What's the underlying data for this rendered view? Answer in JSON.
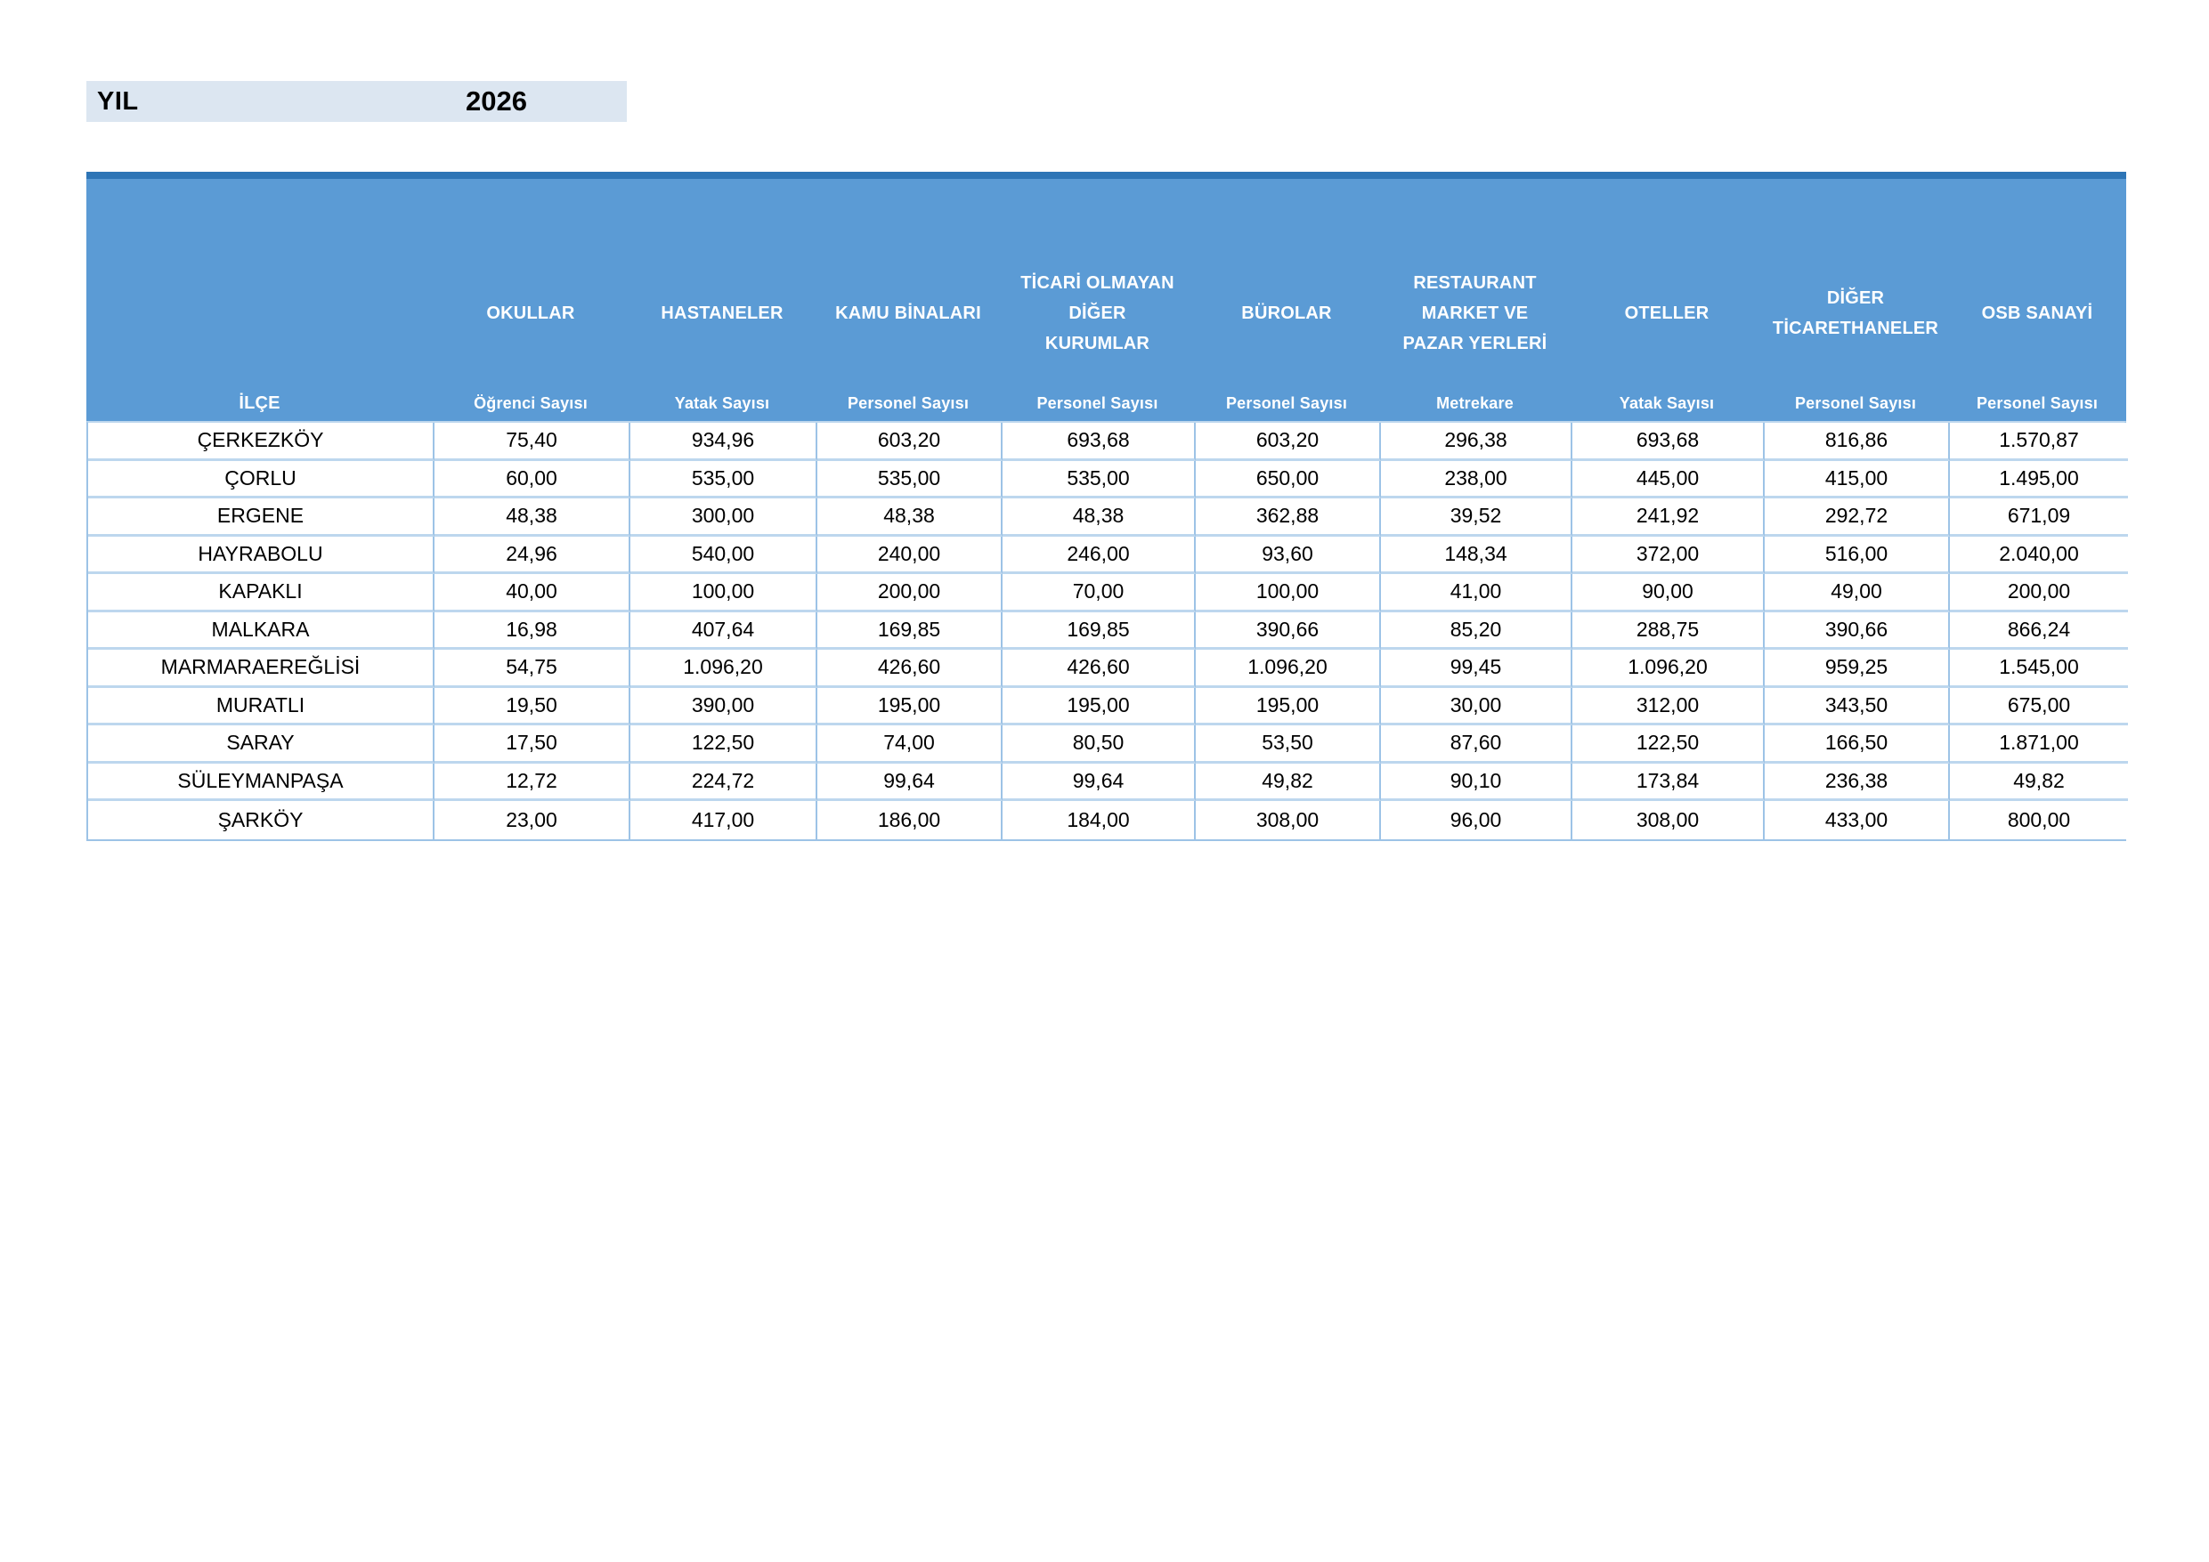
{
  "year_banner": {
    "label": "YIL",
    "value": "2026"
  },
  "colors": {
    "header_blue": "#5b9bd5",
    "header_top_strip": "#2e75b6",
    "grid_line": "#9dc3e6",
    "row_line": "#bdd7ee",
    "banner_bg": "#dce6f1",
    "header_text": "#ffffff",
    "data_text": "#000000"
  },
  "table": {
    "row_header": "İLÇE",
    "columns": [
      {
        "group": "OKULLAR",
        "group_lines": [
          "OKULLAR"
        ],
        "sub": "Öğrenci Sayısı"
      },
      {
        "group": "HASTANELER",
        "group_lines": [
          "HASTANELER"
        ],
        "sub": "Yatak Sayısı"
      },
      {
        "group": "KAMU BİNALARI",
        "group_lines": [
          "KAMU BİNALARI"
        ],
        "sub": "Personel Sayısı"
      },
      {
        "group": "TİCARİ OLMAYAN DİĞER KURUMLAR",
        "group_lines": [
          "TİCARİ OLMAYAN",
          "DİĞER",
          "KURUMLAR"
        ],
        "sub": "Personel Sayısı"
      },
      {
        "group": "BÜROLAR",
        "group_lines": [
          "BÜROLAR"
        ],
        "sub": "Personel Sayısı"
      },
      {
        "group": "RESTAURANT MARKET VE PAZAR YERLERİ",
        "group_lines": [
          "RESTAURANT",
          "MARKET VE",
          "PAZAR YERLERİ"
        ],
        "sub": "Metrekare"
      },
      {
        "group": "OTELLER",
        "group_lines": [
          "OTELLER"
        ],
        "sub": "Yatak Sayısı"
      },
      {
        "group": "DİĞER TİCARETHANELER",
        "group_lines": [
          "DİĞER",
          "TİCARETHANELER"
        ],
        "sub": "Personel Sayısı"
      },
      {
        "group": "OSB SANAYİ",
        "group_lines": [
          "OSB SANAYİ"
        ],
        "sub": "Personel Sayısı"
      }
    ],
    "rows": [
      {
        "district": "ÇERKEZKÖY",
        "values": [
          "75,40",
          "934,96",
          "603,20",
          "693,68",
          "603,20",
          "296,38",
          "693,68",
          "816,86",
          "1.570,87"
        ]
      },
      {
        "district": "ÇORLU",
        "values": [
          "60,00",
          "535,00",
          "535,00",
          "535,00",
          "650,00",
          "238,00",
          "445,00",
          "415,00",
          "1.495,00"
        ]
      },
      {
        "district": "ERGENE",
        "values": [
          "48,38",
          "300,00",
          "48,38",
          "48,38",
          "362,88",
          "39,52",
          "241,92",
          "292,72",
          "671,09"
        ]
      },
      {
        "district": "HAYRABOLU",
        "values": [
          "24,96",
          "540,00",
          "240,00",
          "246,00",
          "93,60",
          "148,34",
          "372,00",
          "516,00",
          "2.040,00"
        ]
      },
      {
        "district": "KAPAKLI",
        "values": [
          "40,00",
          "100,00",
          "200,00",
          "70,00",
          "100,00",
          "41,00",
          "90,00",
          "49,00",
          "200,00"
        ]
      },
      {
        "district": "MALKARA",
        "values": [
          "16,98",
          "407,64",
          "169,85",
          "169,85",
          "390,66",
          "85,20",
          "288,75",
          "390,66",
          "866,24"
        ]
      },
      {
        "district": "MARMARAEREĞLİSİ",
        "values": [
          "54,75",
          "1.096,20",
          "426,60",
          "426,60",
          "1.096,20",
          "99,45",
          "1.096,20",
          "959,25",
          "1.545,00"
        ]
      },
      {
        "district": "MURATLI",
        "values": [
          "19,50",
          "390,00",
          "195,00",
          "195,00",
          "195,00",
          "30,00",
          "312,00",
          "343,50",
          "675,00"
        ]
      },
      {
        "district": "SARAY",
        "values": [
          "17,50",
          "122,50",
          "74,00",
          "80,50",
          "53,50",
          "87,60",
          "122,50",
          "166,50",
          "1.871,00"
        ]
      },
      {
        "district": "SÜLEYMANPAŞA",
        "values": [
          "12,72",
          "224,72",
          "99,64",
          "99,64",
          "49,82",
          "90,10",
          "173,84",
          "236,38",
          "49,82"
        ]
      },
      {
        "district": "ŞARKÖY",
        "values": [
          "23,00",
          "417,00",
          "186,00",
          "184,00",
          "308,00",
          "96,00",
          "308,00",
          "433,00",
          "800,00"
        ]
      }
    ]
  }
}
